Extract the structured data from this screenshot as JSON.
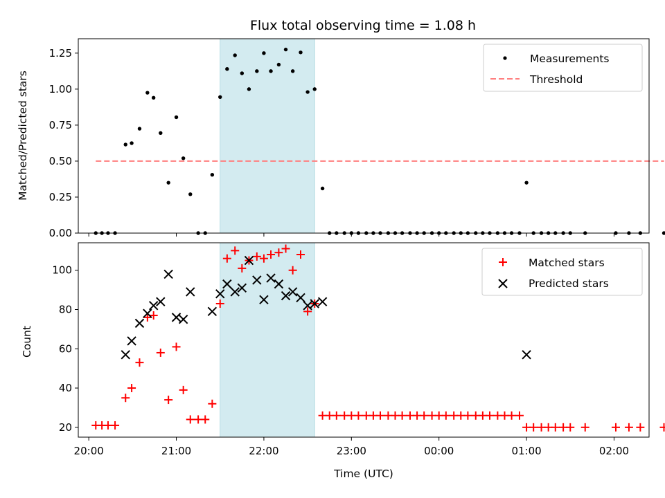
{
  "chart_data": [
    {
      "type": "scatter",
      "title": "Flux total observing time = 1.08 h",
      "xlabel": "",
      "ylabel": "Matched/Predicted stars",
      "ylim": [
        0,
        1.35
      ],
      "xlim": [
        -0.12,
        6.4
      ],
      "yticks": [
        0,
        0.25,
        0.5,
        0.75,
        1.0,
        1.25
      ],
      "ytick_labels": [
        "0.00",
        "0.25",
        "0.50",
        "0.75",
        "1.00",
        "1.25"
      ],
      "grid": false,
      "legend_position": "top-right",
      "shaded_interval": {
        "x": [
          1.5,
          2.58
        ],
        "color": "#d3ebf0"
      },
      "series": [
        {
          "name": "Measurements",
          "color": "#000000",
          "marker": "dot",
          "x": [
            0.08,
            0.15,
            0.22,
            0.3,
            0.42,
            0.49,
            0.58,
            0.67,
            0.74,
            0.82,
            0.91,
            1.0,
            1.08,
            1.16,
            1.25,
            1.33,
            1.41,
            1.5,
            1.58,
            1.67,
            1.75,
            1.83,
            1.92,
            2.0,
            2.08,
            2.17,
            2.25,
            2.33,
            2.42,
            2.5,
            2.58,
            2.67,
            2.75,
            2.83,
            2.92,
            3.0,
            3.08,
            3.17,
            3.25,
            3.33,
            3.42,
            3.5,
            3.58,
            3.67,
            3.75,
            3.83,
            3.92,
            4.0,
            4.08,
            4.17,
            4.25,
            4.33,
            4.42,
            4.5,
            4.58,
            4.67,
            4.75,
            4.83,
            4.92,
            5.0,
            5.08,
            5.17,
            5.25,
            5.33,
            5.42,
            5.5,
            5.67,
            6.02,
            6.17,
            6.3,
            6.57
          ],
          "y": [
            0,
            0,
            0,
            0,
            0.615,
            0.625,
            0.725,
            0.975,
            0.94,
            0.695,
            0.35,
            0.805,
            0.52,
            0.27,
            0,
            0,
            0.405,
            0.945,
            1.14,
            1.235,
            1.11,
            1.0,
            1.125,
            1.25,
            1.125,
            1.17,
            1.275,
            1.125,
            1.255,
            0.98,
            1.0,
            0.31,
            0,
            0,
            0,
            0,
            0,
            0,
            0,
            0,
            0,
            0,
            0,
            0,
            0,
            0,
            0,
            0,
            0,
            0,
            0,
            0,
            0,
            0,
            0,
            0,
            0,
            0,
            0,
            0.35,
            0,
            0,
            0,
            0,
            0,
            0,
            0,
            0,
            0,
            0,
            0
          ]
        },
        {
          "name": "Threshold",
          "color": "#ff7f7f",
          "style": "dashed",
          "x": [
            0.08,
            6.57
          ],
          "y": [
            0.5,
            0.5
          ]
        }
      ]
    },
    {
      "type": "scatter",
      "title": "",
      "xlabel": "Time (UTC)",
      "ylabel": "Count",
      "ylim": [
        15,
        114
      ],
      "xlim": [
        -0.12,
        6.4
      ],
      "yticks": [
        20,
        40,
        60,
        80,
        100
      ],
      "ytick_labels": [
        "20",
        "40",
        "60",
        "80",
        "100"
      ],
      "xticks": [
        0,
        1,
        2,
        3,
        4,
        5,
        6
      ],
      "xtick_labels": [
        "20:00",
        "21:00",
        "22:00",
        "23:00",
        "00:00",
        "01:00",
        "02:00"
      ],
      "grid": false,
      "legend_position": "top-right",
      "shaded_interval": {
        "x": [
          1.5,
          2.58
        ],
        "color": "#d3ebf0"
      },
      "series": [
        {
          "name": "Matched stars",
          "color": "#ff0000",
          "marker": "plus",
          "x": [
            0.08,
            0.15,
            0.22,
            0.3,
            0.42,
            0.49,
            0.58,
            0.67,
            0.74,
            0.82,
            0.91,
            1.0,
            1.08,
            1.16,
            1.25,
            1.33,
            1.41,
            1.5,
            1.58,
            1.67,
            1.75,
            1.83,
            1.92,
            2.0,
            2.08,
            2.17,
            2.25,
            2.33,
            2.42,
            2.5,
            2.58,
            2.67,
            2.75,
            2.83,
            2.92,
            3.0,
            3.08,
            3.17,
            3.25,
            3.33,
            3.42,
            3.5,
            3.58,
            3.67,
            3.75,
            3.83,
            3.92,
            4.0,
            4.08,
            4.17,
            4.25,
            4.33,
            4.42,
            4.5,
            4.58,
            4.67,
            4.75,
            4.83,
            4.92,
            5.0,
            5.08,
            5.17,
            5.25,
            5.33,
            5.42,
            5.5,
            5.67,
            6.02,
            6.17,
            6.3,
            6.57
          ],
          "y": [
            21,
            21,
            21,
            21,
            35,
            40,
            53,
            76,
            77,
            58,
            34,
            61,
            39,
            24,
            24,
            24,
            32,
            83,
            106,
            110,
            101,
            105,
            107,
            106,
            108,
            109,
            111,
            100,
            108,
            79,
            83,
            26,
            26,
            26,
            26,
            26,
            26,
            26,
            26,
            26,
            26,
            26,
            26,
            26,
            26,
            26,
            26,
            26,
            26,
            26,
            26,
            26,
            26,
            26,
            26,
            26,
            26,
            26,
            26,
            20,
            20,
            20,
            20,
            20,
            20,
            20,
            20,
            20,
            20,
            20,
            20
          ]
        },
        {
          "name": "Predicted stars",
          "color": "#000000",
          "marker": "x",
          "x": [
            0.42,
            0.49,
            0.58,
            0.67,
            0.74,
            0.82,
            0.91,
            1.0,
            1.08,
            1.16,
            1.41,
            1.5,
            1.58,
            1.67,
            1.75,
            1.83,
            1.92,
            2.0,
            2.08,
            2.17,
            2.25,
            2.33,
            2.42,
            2.5,
            2.58,
            2.67,
            5.0
          ],
          "y": [
            57,
            64,
            73,
            78,
            82,
            84,
            98,
            76,
            75,
            89,
            79,
            88,
            93,
            89,
            91,
            105,
            95,
            85,
            96,
            93,
            87,
            89,
            86,
            82,
            83,
            84,
            57
          ]
        }
      ]
    }
  ]
}
